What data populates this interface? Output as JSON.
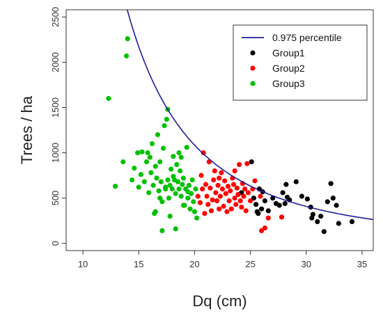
{
  "chart_data": {
    "type": "scatter",
    "xlabel": "Dq (cm)",
    "ylabel": "Trees / ha",
    "xlim": [
      8.5,
      36
    ],
    "ylim": [
      -80,
      2580
    ],
    "x_ticks": [
      10,
      15,
      20,
      25,
      30,
      35
    ],
    "y_ticks": [
      0,
      500,
      1000,
      1500,
      2000,
      2500
    ],
    "y_tick_rotation": "vertical",
    "grid": false,
    "legend_position": "top-right",
    "curve": {
      "name": "0.975 percentile",
      "color": "#1c1c9c",
      "model": "y = a * x^b",
      "a": 1500000,
      "b": -2.414,
      "x_range": [
        12,
        36
      ]
    },
    "series": [
      {
        "name": "Group1",
        "color": "#000000",
        "points": [
          [
            24.2,
            560
          ],
          [
            25.1,
            900
          ],
          [
            25.3,
            500
          ],
          [
            25.5,
            430
          ],
          [
            25.6,
            350
          ],
          [
            25.8,
            600
          ],
          [
            26.1,
            570
          ],
          [
            26.3,
            470
          ],
          [
            26.0,
            380
          ],
          [
            26.6,
            360
          ],
          [
            27.0,
            500
          ],
          [
            27.3,
            440
          ],
          [
            27.6,
            420
          ],
          [
            27.9,
            560
          ],
          [
            28.1,
            440
          ],
          [
            28.2,
            650
          ],
          [
            28.3,
            510
          ],
          [
            28.5,
            480
          ],
          [
            29.1,
            680
          ],
          [
            29.6,
            520
          ],
          [
            30.1,
            490
          ],
          [
            30.4,
            400
          ],
          [
            30.6,
            320
          ],
          [
            31.0,
            240
          ],
          [
            31.3,
            300
          ],
          [
            31.6,
            130
          ],
          [
            31.9,
            460
          ],
          [
            32.2,
            660
          ],
          [
            32.4,
            500
          ],
          [
            32.7,
            420
          ],
          [
            32.9,
            220
          ],
          [
            34.1,
            240
          ],
          [
            25.7,
            330
          ],
          [
            30.5,
            280
          ]
        ]
      },
      {
        "name": "Group2",
        "color": "#ff0000",
        "points": [
          [
            20.3,
            520
          ],
          [
            20.5,
            450
          ],
          [
            20.6,
            750
          ],
          [
            20.8,
            1000
          ],
          [
            21.0,
            650
          ],
          [
            21.1,
            520
          ],
          [
            21.2,
            430
          ],
          [
            21.4,
            610
          ],
          [
            21.5,
            360
          ],
          [
            21.7,
            700
          ],
          [
            21.8,
            800
          ],
          [
            21.9,
            560
          ],
          [
            22.0,
            470
          ],
          [
            22.1,
            640
          ],
          [
            22.2,
            380
          ],
          [
            22.3,
            520
          ],
          [
            22.4,
            780
          ],
          [
            22.5,
            600
          ],
          [
            22.6,
            410
          ],
          [
            22.7,
            690
          ],
          [
            22.8,
            550
          ],
          [
            22.9,
            350
          ],
          [
            23.0,
            630
          ],
          [
            23.1,
            470
          ],
          [
            23.2,
            580
          ],
          [
            23.3,
            380
          ],
          [
            23.4,
            720
          ],
          [
            23.5,
            650
          ],
          [
            23.6,
            500
          ],
          [
            23.7,
            430
          ],
          [
            23.8,
            610
          ],
          [
            23.9,
            540
          ],
          [
            24.0,
            870
          ],
          [
            24.1,
            470
          ],
          [
            24.2,
            400
          ],
          [
            24.3,
            660
          ],
          [
            24.4,
            520
          ],
          [
            24.5,
            600
          ],
          [
            24.6,
            360
          ],
          [
            24.8,
            560
          ],
          [
            25.0,
            470
          ],
          [
            25.2,
            600
          ],
          [
            25.4,
            690
          ],
          [
            25.9,
            520
          ],
          [
            26.0,
            140
          ],
          [
            26.3,
            170
          ],
          [
            26.6,
            280
          ],
          [
            27.8,
            290
          ],
          [
            21.3,
            900
          ],
          [
            20.9,
            330
          ],
          [
            22.2,
            720
          ],
          [
            23.6,
            800
          ],
          [
            21.6,
            480
          ],
          [
            24.7,
            880
          ],
          [
            20.7,
            600
          ]
        ]
      },
      {
        "name": "Group3",
        "color": "#00c000",
        "points": [
          [
            12.3,
            1600
          ],
          [
            12.9,
            630
          ],
          [
            13.6,
            900
          ],
          [
            13.9,
            2070
          ],
          [
            14.0,
            2260
          ],
          [
            14.4,
            700
          ],
          [
            14.6,
            830
          ],
          [
            14.9,
            1000
          ],
          [
            15.0,
            620
          ],
          [
            15.2,
            760
          ],
          [
            15.3,
            1010
          ],
          [
            15.5,
            680
          ],
          [
            15.7,
            900
          ],
          [
            15.9,
            560
          ],
          [
            16.0,
            950
          ],
          [
            16.1,
            780
          ],
          [
            16.2,
            1100
          ],
          [
            16.3,
            640
          ],
          [
            16.4,
            330
          ],
          [
            16.5,
            850
          ],
          [
            16.6,
            720
          ],
          [
            16.7,
            1200
          ],
          [
            16.8,
            580
          ],
          [
            16.9,
            900
          ],
          [
            17.0,
            680
          ],
          [
            17.1,
            460
          ],
          [
            17.2,
            1050
          ],
          [
            17.3,
            1300
          ],
          [
            17.4,
            600
          ],
          [
            17.5,
            1370
          ],
          [
            17.6,
            700
          ],
          [
            17.7,
            500
          ],
          [
            17.8,
            640
          ],
          [
            17.9,
            820
          ],
          [
            18.0,
            600
          ],
          [
            18.1,
            960
          ],
          [
            18.2,
            700
          ],
          [
            18.3,
            550
          ],
          [
            18.4,
            870
          ],
          [
            18.5,
            680
          ],
          [
            18.6,
            600
          ],
          [
            18.7,
            800
          ],
          [
            18.8,
            520
          ],
          [
            18.9,
            650
          ],
          [
            19.0,
            720
          ],
          [
            19.1,
            420
          ],
          [
            19.2,
            600
          ],
          [
            19.3,
            1060
          ],
          [
            19.4,
            500
          ],
          [
            19.5,
            640
          ],
          [
            19.6,
            380
          ],
          [
            19.7,
            550
          ],
          [
            19.8,
            700
          ],
          [
            19.9,
            460
          ],
          [
            20.0,
            350
          ],
          [
            20.1,
            600
          ],
          [
            20.2,
            280
          ],
          [
            17.1,
            140
          ],
          [
            17.6,
            1480
          ],
          [
            18.3,
            160
          ],
          [
            16.5,
            350
          ],
          [
            15.8,
            1000
          ],
          [
            17.8,
            300
          ],
          [
            18.8,
            950
          ],
          [
            19.0,
            420
          ],
          [
            17.4,
            620
          ],
          [
            18.1,
            740
          ],
          [
            16.9,
            500
          ],
          [
            19.4,
            570
          ],
          [
            18.6,
            1000
          ]
        ]
      }
    ]
  }
}
